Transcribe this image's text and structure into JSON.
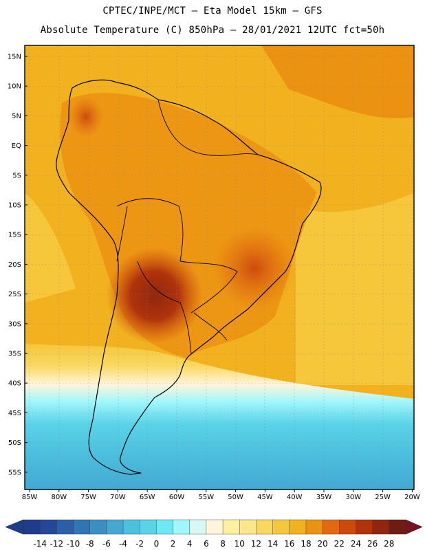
{
  "header": {
    "line1": "CPTEC/INPE/MCT —  Eta Model 15km — GFS",
    "line2": "Absolute Temperature (C) 850hPa — 28/01/2021 12UTC fct=50h"
  },
  "map": {
    "lat_labels": [
      "15N",
      "10N",
      "5N",
      "EQ",
      "5S",
      "10S",
      "15S",
      "20S",
      "25S",
      "30S",
      "35S",
      "40S",
      "45S",
      "50S",
      "55S"
    ],
    "lon_labels": [
      "85W",
      "80W",
      "75W",
      "70W",
      "65W",
      "60W",
      "55W",
      "50W",
      "45W",
      "40W",
      "35W",
      "30W",
      "25W",
      "20W"
    ]
  },
  "colorbar": {
    "labels": [
      "-14",
      "-12",
      "-10",
      "-8",
      "-6",
      "-4",
      "-2",
      "0",
      "2",
      "4",
      "6",
      "8",
      "10",
      "12",
      "14",
      "16",
      "18",
      "20",
      "22",
      "24",
      "26",
      "28"
    ],
    "colors": [
      "#1f3c8c",
      "#25479a",
      "#2b5fa8",
      "#2f76b7",
      "#3a8fc4",
      "#44a8d2",
      "#4cc0de",
      "#5ad3e8",
      "#6ee8f4",
      "#9ff6fb",
      "#d8f8f6",
      "#fff5dc",
      "#ffefa0",
      "#fde68a",
      "#f9d860",
      "#f6c63b",
      "#f2b11e",
      "#ec9212",
      "#e36810",
      "#cd4a0c",
      "#b0330b",
      "#8f2710",
      "#6f1d12"
    ]
  }
}
